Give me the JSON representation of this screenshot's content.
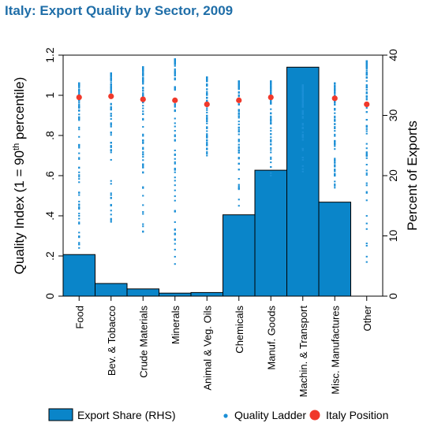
{
  "title": "Italy: Export Quality by Sector, 2009",
  "colors": {
    "title": "#1f6ea8",
    "bar_fill": "#0a85c9",
    "bar_stroke": "#000000",
    "ladder": "#1b8fd6",
    "italy": "#f0392b"
  },
  "chart_data": {
    "type": "bar",
    "title": "Italy: Export Quality by Sector, 2009",
    "categories": [
      "Food",
      "Bev. & Tobacco",
      "Crude Materials",
      "Minerals",
      "Animal & Veg. Oils",
      "Chemicals",
      "Manuf. Goods",
      "Machin. & Transport",
      "Misc. Manufactures",
      "Other"
    ],
    "ylabel_left": "Quality Index (1 = 90th percentile)",
    "ylabel_left_parts": [
      "Quality Index (1 = 90",
      "th",
      " percentile)"
    ],
    "ylabel_right": "Percent of Exports",
    "ylim_left": [
      0,
      1.2
    ],
    "ylim_right": [
      0,
      40
    ],
    "yticks_left": [
      {
        "value": 0,
        "label": "0"
      },
      {
        "value": 0.2,
        "label": ".2"
      },
      {
        "value": 0.4,
        "label": ".4"
      },
      {
        "value": 0.6,
        "label": ".6"
      },
      {
        "value": 0.8,
        "label": ".8"
      },
      {
        "value": 1.0,
        "label": "1"
      },
      {
        "value": 1.2,
        "label": "1.2"
      }
    ],
    "yticks_right": [
      {
        "value": 0,
        "label": "0"
      },
      {
        "value": 10,
        "label": "10"
      },
      {
        "value": 20,
        "label": "20"
      },
      {
        "value": 30,
        "label": "30"
      },
      {
        "value": 40,
        "label": "40"
      }
    ],
    "series": [
      {
        "name": "Export Share (RHS)",
        "kind": "bar",
        "axis": "right",
        "values": [
          6.9,
          2.1,
          1.2,
          0.5,
          0.6,
          13.5,
          20.9,
          38.0,
          15.6,
          0.0
        ]
      },
      {
        "name": "Quality Ladder",
        "kind": "range-dots",
        "axis": "left",
        "ranges": [
          [
            0.24,
            1.06
          ],
          [
            0.37,
            1.11
          ],
          [
            0.32,
            1.14
          ],
          [
            0.16,
            1.18
          ],
          [
            0.7,
            1.09
          ],
          [
            0.45,
            1.07
          ],
          [
            0.6,
            1.07
          ],
          [
            0.62,
            1.05
          ],
          [
            0.54,
            1.06
          ],
          [
            0.17,
            1.17
          ]
        ]
      },
      {
        "name": "Italy Position",
        "kind": "point",
        "axis": "left",
        "values": [
          0.99,
          0.995,
          0.98,
          0.975,
          0.955,
          0.975,
          0.99,
          null,
          0.985,
          0.955
        ]
      }
    ],
    "legend": {
      "placement": "bottom",
      "items": [
        "Export Share (RHS)",
        "Quality Ladder",
        "Italy Position"
      ]
    }
  }
}
